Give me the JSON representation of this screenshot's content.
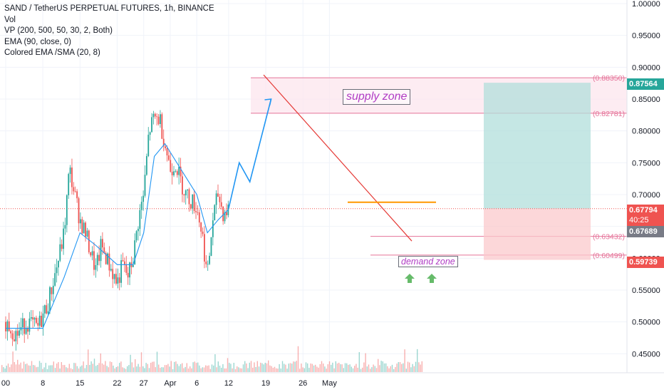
{
  "legend": {
    "title": "SAND / TetherUS PERPETUAL FUTURES, 1h, BINANCE",
    "vol": "Vol",
    "vp": "VP (200, 500, 50, 30, 2, Both)",
    "ema": "EMA (90, close, 0)",
    "colored_ema": "Colored EMA /SMA (20, 8)"
  },
  "annotations": {
    "supply_zone": "supply zone",
    "demand_zone": "demand zone"
  },
  "price_tags": {
    "top_zone_high": "(0.88350)",
    "top_zone_low": "(0.82781)",
    "bottom_zone_high": "(0.63432)",
    "bottom_zone_low": "(0.60499)",
    "target": "0.87564",
    "current": "0.67794",
    "countdown": "40:25",
    "ema_value": "0.67689",
    "stop": "0.59739"
  },
  "colors": {
    "up_candle": "#26a69a",
    "down_candle": "#ef5350",
    "ema_line": "#2196f3",
    "supply_fill": "#fce4ec",
    "supply_line": "#e57399",
    "trend_line": "#e53935",
    "target_fill": "#b2dfdb",
    "stop_fill": "#fbc9cc",
    "projection_line": "#2196f3",
    "badge_green": "#26a69a",
    "badge_red": "#ef5350",
    "badge_dark": "#787b86",
    "orange_line": "#ff9800"
  },
  "chart_data": {
    "type": "candlestick",
    "instrument": "SAND / TetherUS PERPETUAL FUTURES",
    "interval": "1h",
    "exchange": "BINANCE",
    "y_ticks": [
      "1.00000",
      "0.95000",
      "0.90000",
      "0.85000",
      "0.80000",
      "0.75000",
      "0.70000",
      "0.65000",
      "0.60000",
      "0.55000",
      "0.50000",
      "0.45000"
    ],
    "x_ticks": [
      "00",
      "8",
      "15",
      "22",
      "27",
      "Apr",
      "6",
      "12",
      "19",
      "26",
      "May"
    ],
    "ylim": [
      0.42,
      1.0
    ],
    "price_path": [
      [
        "Mar 1 00:00",
        0.5
      ],
      [
        "Mar 3",
        0.48
      ],
      [
        "Mar 5",
        0.5
      ],
      [
        "Mar 7",
        0.49
      ],
      [
        "Mar 9",
        0.53
      ],
      [
        "Mar 11",
        0.6
      ],
      [
        "Mar 12",
        0.64
      ],
      [
        "Mar 13",
        0.74
      ],
      [
        "Mar 14",
        0.7
      ],
      [
        "Mar 15",
        0.66
      ],
      [
        "Mar 16",
        0.64
      ],
      [
        "Mar 17",
        0.61
      ],
      [
        "Mar 18",
        0.58
      ],
      [
        "Mar 19",
        0.62
      ],
      [
        "Mar 20",
        0.6
      ],
      [
        "Mar 21",
        0.58
      ],
      [
        "Mar 22",
        0.56
      ],
      [
        "Mar 23",
        0.59
      ],
      [
        "Mar 24",
        0.57
      ],
      [
        "Mar 25",
        0.6
      ],
      [
        "Mar 26",
        0.66
      ],
      [
        "Mar 27",
        0.7
      ],
      [
        "Mar 28",
        0.8
      ],
      [
        "Mar 29",
        0.82
      ],
      [
        "Mar 30",
        0.82
      ],
      [
        "Mar 31",
        0.78
      ],
      [
        "Apr 1",
        0.74
      ],
      [
        "Apr 2",
        0.75
      ],
      [
        "Apr 3",
        0.72
      ],
      [
        "Apr 4",
        0.7
      ],
      [
        "Apr 5",
        0.69
      ],
      [
        "Apr 6",
        0.68
      ],
      [
        "Apr 7",
        0.64
      ],
      [
        "Apr 8",
        0.57
      ],
      [
        "Apr 9",
        0.66
      ],
      [
        "Apr 10",
        0.7
      ],
      [
        "Apr 11",
        0.67
      ],
      [
        "Apr 12",
        0.678
      ]
    ],
    "ema90": [
      [
        "Mar 1 00:00",
        0.49
      ],
      [
        "Mar 8",
        0.49
      ],
      [
        "Mar 12",
        0.57
      ],
      [
        "Mar 15",
        0.64
      ],
      [
        "Mar 18",
        0.62
      ],
      [
        "Mar 22",
        0.59
      ],
      [
        "Mar 25",
        0.59
      ],
      [
        "Mar 27",
        0.64
      ],
      [
        "Mar 29",
        0.76
      ],
      [
        "Mar 31",
        0.78
      ],
      [
        "Apr 3",
        0.74
      ],
      [
        "Apr 6",
        0.7
      ],
      [
        "Apr 8",
        0.64
      ],
      [
        "Apr 10",
        0.66
      ],
      [
        "Apr 12",
        0.6769
      ]
    ],
    "projection": [
      [
        "Apr 12",
        0.678
      ],
      [
        "Apr 14",
        0.75
      ],
      [
        "Apr 16",
        0.72
      ],
      [
        "Apr 20",
        0.85
      ]
    ],
    "supply_zone": [
      0.82781,
      0.8835
    ],
    "demand_zone": [
      0.60499,
      0.63432
    ],
    "long_position": {
      "entry": 0.67794,
      "target": 0.87564,
      "stop": 0.59739
    }
  }
}
